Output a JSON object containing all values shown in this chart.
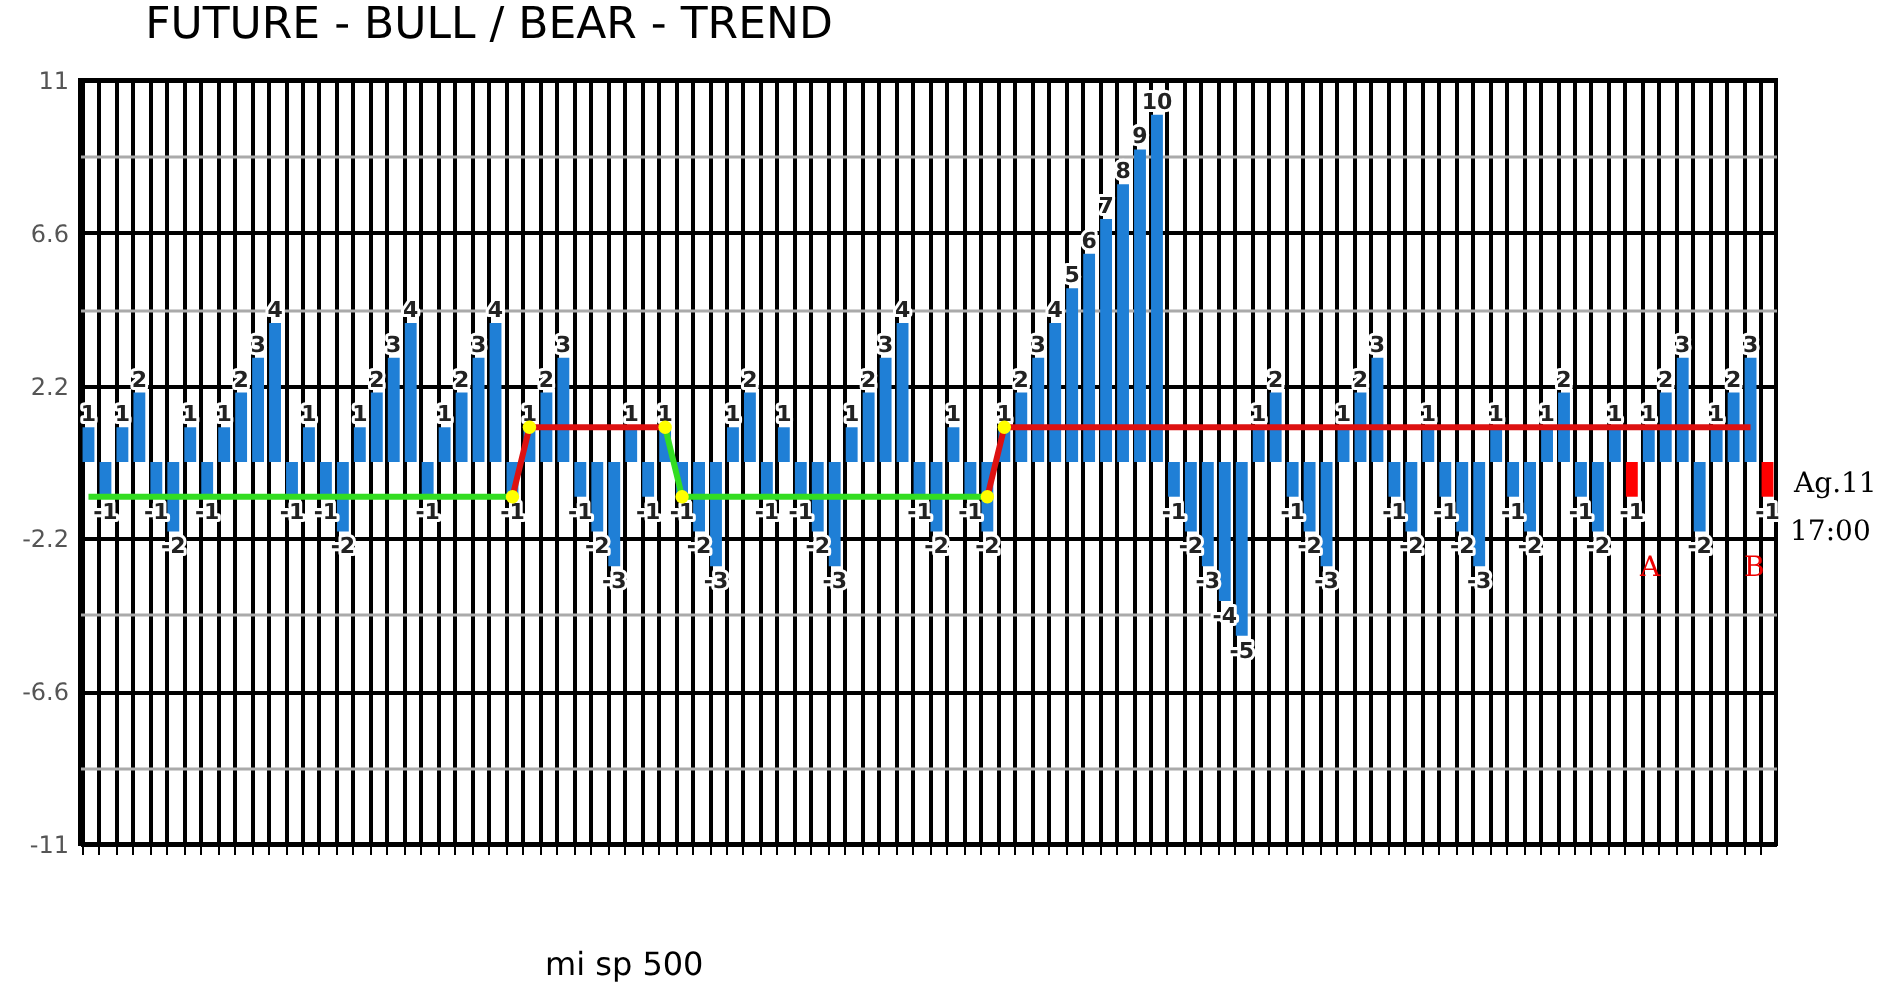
{
  "chart_data": {
    "type": "bar",
    "title": "FUTURE - BULL / BEAR - TREND",
    "xlabel": "mi sp 500",
    "categories": [
      null,
      null,
      null,
      null,
      null,
      null,
      null,
      null,
      null,
      null,
      null,
      null,
      null,
      null,
      null,
      null,
      null,
      null,
      null,
      null,
      null,
      null,
      null,
      null,
      null,
      null,
      null,
      null,
      null,
      null,
      null,
      null,
      null,
      null,
      null,
      null,
      null,
      null,
      null,
      null,
      null,
      null,
      null,
      null,
      null,
      null,
      null,
      null,
      null,
      null,
      null,
      null,
      null,
      null,
      null,
      null,
      null,
      null,
      null,
      null,
      null,
      null,
      null,
      null,
      null,
      null,
      null,
      null,
      null,
      null,
      null,
      null,
      null,
      null,
      null,
      null,
      null,
      null,
      null,
      null,
      null,
      null,
      null,
      null,
      null,
      null,
      null,
      null,
      null,
      null,
      null,
      null,
      null,
      null,
      null,
      null,
      null,
      null,
      null,
      null
    ],
    "ylim": [
      -11,
      11
    ],
    "yticks": [
      -11,
      {
        "value": -8.8,
        "label": null
      },
      -6.6,
      {
        "value": -4.4,
        "label": null
      },
      -2.2,
      2.2,
      {
        "value": 4.4,
        "label": null
      },
      6.6,
      {
        "value": 8.8,
        "label": null
      },
      11
    ],
    "grid": true,
    "annotations": [
      "A",
      "B",
      "Ag.11",
      "17:00"
    ],
    "series": [
      {
        "data_labels": true,
        "values": [
          1,
          -1,
          1,
          2,
          -1,
          -2,
          1,
          -1,
          1,
          2,
          3,
          4,
          -1,
          1,
          -1,
          -2,
          1,
          2,
          3,
          4,
          -1,
          1,
          2,
          3,
          4,
          -1,
          1,
          2,
          3,
          -1,
          -2,
          -3,
          1,
          -1,
          1,
          -1,
          -2,
          -3,
          1,
          2,
          -1,
          1,
          -1,
          -2,
          -3,
          1,
          2,
          3,
          4,
          -1,
          -2,
          1,
          -1,
          -2,
          1,
          2,
          3,
          4,
          5,
          6,
          7,
          8,
          9,
          10,
          -1,
          -2,
          -3,
          -4,
          -5,
          1,
          2,
          -1,
          -2,
          -3,
          1,
          2,
          3,
          -1,
          -2,
          1,
          -1,
          -2,
          -3,
          1,
          -1,
          -2,
          1,
          2,
          -1,
          -2,
          1,
          -1,
          1,
          2,
          3,
          -2,
          1,
          2,
          3,
          -1
        ],
        "colors": [
          "#1f7fd6",
          "#1f7fd6",
          "#1f7fd6",
          "#1f7fd6",
          "#1f7fd6",
          "#1f7fd6",
          "#1f7fd6",
          "#1f7fd6",
          "#1f7fd6",
          "#1f7fd6",
          "#1f7fd6",
          "#1f7fd6",
          "#1f7fd6",
          "#1f7fd6",
          "#1f7fd6",
          "#1f7fd6",
          "#1f7fd6",
          "#1f7fd6",
          "#1f7fd6",
          "#1f7fd6",
          "#1f7fd6",
          "#1f7fd6",
          "#1f7fd6",
          "#1f7fd6",
          "#1f7fd6",
          "#1f7fd6",
          "#1f7fd6",
          "#1f7fd6",
          "#1f7fd6",
          "#1f7fd6",
          "#1f7fd6",
          "#1f7fd6",
          "#1f7fd6",
          "#1f7fd6",
          "#1f7fd6",
          "#1f7fd6",
          "#1f7fd6",
          "#1f7fd6",
          "#1f7fd6",
          "#1f7fd6",
          "#1f7fd6",
          "#1f7fd6",
          "#1f7fd6",
          "#1f7fd6",
          "#1f7fd6",
          "#1f7fd6",
          "#1f7fd6",
          "#1f7fd6",
          "#1f7fd6",
          "#1f7fd6",
          "#1f7fd6",
          "#1f7fd6",
          "#1f7fd6",
          "#1f7fd6",
          "#1f7fd6",
          "#1f7fd6",
          "#1f7fd6",
          "#1f7fd6",
          "#1f7fd6",
          "#1f7fd6",
          "#1f7fd6",
          "#1f7fd6",
          "#1f7fd6",
          "#1f7fd6",
          "#1f7fd6",
          "#1f7fd6",
          "#1f7fd6",
          "#1f7fd6",
          "#1f7fd6",
          "#1f7fd6",
          "#1f7fd6",
          "#1f7fd6",
          "#1f7fd6",
          "#1f7fd6",
          "#1f7fd6",
          "#1f7fd6",
          "#1f7fd6",
          "#1f7fd6",
          "#1f7fd6",
          "#1f7fd6",
          "#1f7fd6",
          "#1f7fd6",
          "#1f7fd6",
          "#1f7fd6",
          "#1f7fd6",
          "#1f7fd6",
          "#1f7fd6",
          "#1f7fd6",
          "#1f7fd6",
          "#1f7fd6",
          "#1f7fd6",
          "#ff0000",
          "#1f7fd6",
          "#1f7fd6",
          "#1f7fd6",
          "#1f7fd6",
          "#1f7fd6",
          "#1f7fd6",
          "#1f7fd6",
          "#ff0000"
        ]
      },
      {
        "type": "line",
        "color": "#33dd22",
        "values": [
          -1,
          -1,
          -1,
          -1,
          -1,
          -1,
          -1,
          -1,
          -1,
          -1,
          -1,
          -1,
          -1,
          -1,
          -1,
          -1,
          -1,
          -1,
          -1,
          -1,
          -1,
          -1,
          -1,
          -1,
          -1,
          -1,
          null,
          null,
          null,
          null,
          null,
          null,
          null,
          null,
          1,
          -1,
          -1,
          -1,
          -1,
          -1,
          -1,
          -1,
          -1,
          -1,
          -1,
          -1,
          -1,
          -1,
          -1,
          -1,
          -1,
          -1,
          -1,
          -1,
          null,
          null,
          null,
          null,
          null,
          null,
          null,
          null,
          null,
          null,
          null,
          null,
          null,
          null,
          null,
          null,
          null,
          null,
          null,
          null,
          null,
          null,
          null,
          null,
          null,
          null,
          null,
          null,
          null,
          null,
          null,
          null,
          null,
          null,
          null,
          null,
          null,
          null,
          null,
          null,
          null,
          null,
          null,
          null,
          null,
          null
        ]
      },
      {
        "type": "line",
        "color": "#dd1111",
        "values": [
          null,
          null,
          null,
          null,
          null,
          null,
          null,
          null,
          null,
          null,
          null,
          null,
          null,
          null,
          null,
          null,
          null,
          null,
          null,
          null,
          null,
          null,
          null,
          null,
          null,
          -1,
          1,
          1,
          1,
          1,
          1,
          1,
          1,
          1,
          1,
          null,
          null,
          null,
          null,
          null,
          null,
          null,
          null,
          null,
          null,
          null,
          null,
          null,
          null,
          null,
          null,
          null,
          null,
          -1,
          1,
          1,
          1,
          1,
          1,
          1,
          1,
          1,
          1,
          1,
          1,
          1,
          1,
          1,
          1,
          1,
          1,
          1,
          1,
          1,
          1,
          1,
          1,
          1,
          1,
          1,
          1,
          1,
          1,
          1,
          1,
          1,
          1,
          1,
          1,
          1,
          1,
          1,
          1,
          1,
          1,
          1,
          1,
          1,
          1,
          null
        ]
      },
      {
        "type": "scatter",
        "marker": "circle",
        "color": "#ffff00",
        "values": [
          null,
          null,
          null,
          null,
          null,
          null,
          null,
          null,
          null,
          null,
          null,
          null,
          null,
          null,
          null,
          null,
          null,
          null,
          null,
          null,
          null,
          null,
          null,
          null,
          null,
          -1,
          1,
          null,
          null,
          null,
          null,
          null,
          null,
          null,
          1,
          -1,
          null,
          null,
          null,
          null,
          null,
          null,
          null,
          null,
          null,
          null,
          null,
          null,
          null,
          null,
          null,
          null,
          null,
          -1,
          1,
          null,
          null,
          null,
          null,
          null,
          null,
          null,
          null,
          null,
          null,
          null,
          null,
          null,
          null,
          null,
          null,
          null,
          null,
          null,
          null,
          null,
          null,
          null,
          null,
          null,
          null,
          null,
          null,
          null,
          null,
          null,
          null,
          null,
          null,
          null,
          null,
          null,
          null,
          null,
          null,
          null,
          null,
          null,
          null,
          null
        ]
      }
    ]
  }
}
